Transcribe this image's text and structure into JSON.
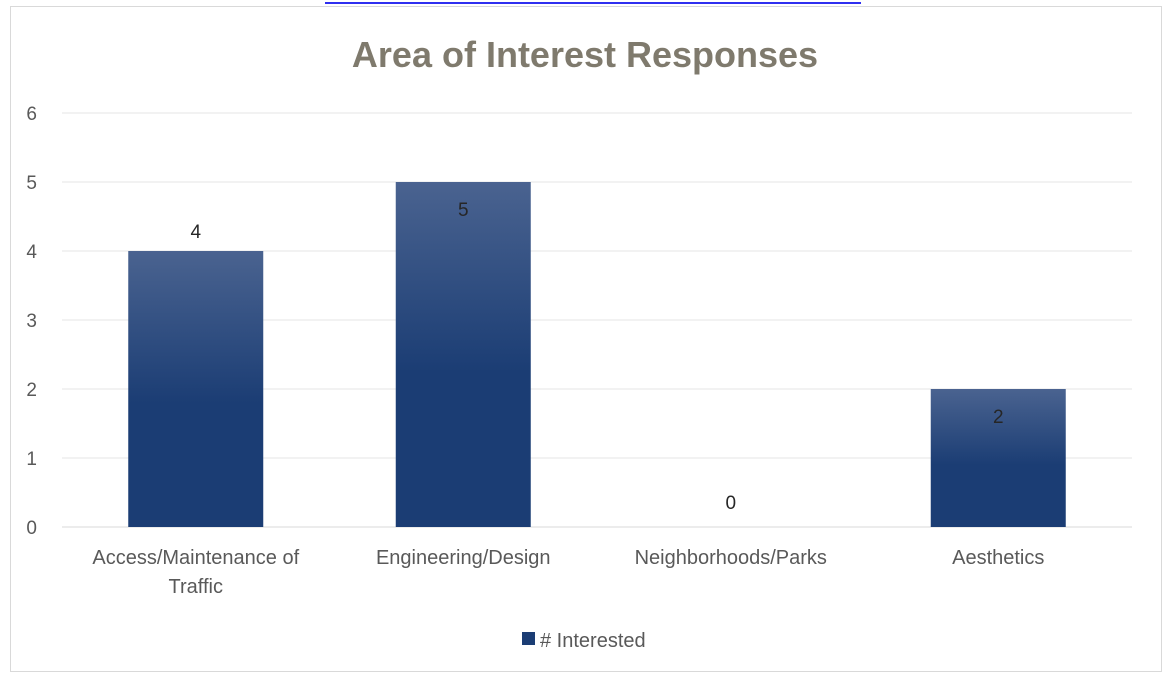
{
  "chart_data": {
    "type": "bar",
    "title": "Area of Interest Responses",
    "xlabel": "",
    "ylabel": "",
    "categories": [
      "Access/Maintenance of Traffic",
      "Engineering/Design",
      "Neighborhoods/Parks",
      "Aesthetics"
    ],
    "category_lines": [
      [
        "Access/Maintenance of",
        "Traffic"
      ],
      [
        "Engineering/Design"
      ],
      [
        "Neighborhoods/Parks"
      ],
      [
        "Aesthetics"
      ]
    ],
    "series": [
      {
        "name": "# Interested",
        "values": [
          4,
          5,
          0,
          2
        ]
      }
    ],
    "ylim": [
      0,
      6
    ],
    "yticks": [
      0,
      1,
      2,
      3,
      4,
      5,
      6
    ],
    "grid": true,
    "legend": "bottom",
    "colors": {
      "bar_top": "#4a6390",
      "bar_bottom": "#1b3d74",
      "title": "#7f7a6d",
      "grid": "#e6e6e6",
      "link_bar": "#2f2ff0"
    }
  }
}
